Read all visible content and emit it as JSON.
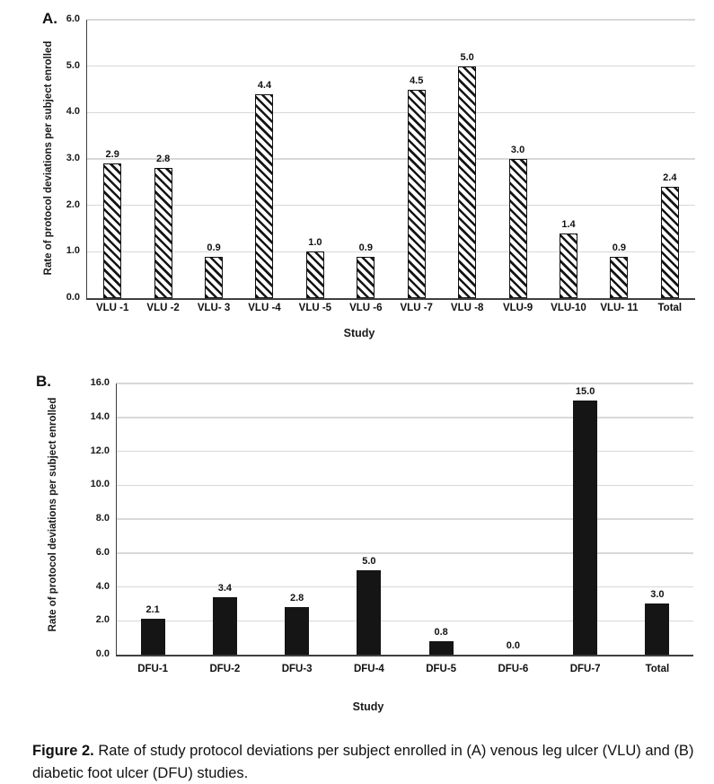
{
  "figure": {
    "panel_a_label": "A.",
    "panel_b_label": "B.",
    "caption_bold": "Figure 2.",
    "caption_text": " Rate of study protocol deviations per subject enrolled in (A) venous leg ulcer (VLU) and (B) diabetic foot ulcer (DFU) studies."
  },
  "colors": {
    "bar_fill": "#151515",
    "gridline": "#d8d8d8",
    "axis": "#3f3f3f"
  },
  "chart_data": [
    {
      "id": "panel-a",
      "type": "bar",
      "panel_label": "A.",
      "xlabel": "Study",
      "ylabel": "Rate of protocol deviations per subject enrolled",
      "categories": [
        "VLU -1",
        "VLU -2",
        "VLU- 3",
        "VLU -4",
        "VLU -5",
        "VLU -6",
        "VLU -7",
        "VLU -8",
        "VLU-9",
        "VLU-10",
        "VLU- 11",
        "Total"
      ],
      "values": [
        2.9,
        2.8,
        0.9,
        4.4,
        1.0,
        0.9,
        4.5,
        5.0,
        3.0,
        1.4,
        0.9,
        2.4
      ],
      "value_labels": [
        "2.9",
        "2.8",
        "0.9",
        "4.4",
        "1.0",
        "0.9",
        "4.5",
        "5.0",
        "3.0",
        "1.4",
        "0.9",
        "2.4"
      ],
      "ylim": [
        0,
        6
      ],
      "ytick_step": 1,
      "ytick_labels": [
        "0.0",
        "1.0",
        "2.0",
        "3.0",
        "4.0",
        "5.0",
        "6.0"
      ],
      "grid": true,
      "legend": "none",
      "bar_style": "hatched"
    },
    {
      "id": "panel-b",
      "type": "bar",
      "panel_label": "B.",
      "xlabel": "Study",
      "ylabel": "Rate of protocol deviations per subject enrolled",
      "categories": [
        "DFU-1",
        "DFU-2",
        "DFU-3",
        "DFU-4",
        "DFU-5",
        "DFU-6",
        "DFU-7",
        "Total"
      ],
      "values": [
        2.1,
        3.4,
        2.8,
        5.0,
        0.8,
        0.0,
        15.0,
        3.0
      ],
      "value_labels": [
        "2.1",
        "3.4",
        "2.8",
        "5.0",
        "0.8",
        "0.0",
        "15.0",
        "3.0"
      ],
      "ylim": [
        0,
        16
      ],
      "ytick_step": 2,
      "ytick_labels": [
        "0.0",
        "2.0",
        "4.0",
        "6.0",
        "8.0",
        "10.0",
        "12.0",
        "14.0",
        "16.0"
      ],
      "grid": true,
      "legend": "none",
      "bar_style": "solid"
    }
  ]
}
